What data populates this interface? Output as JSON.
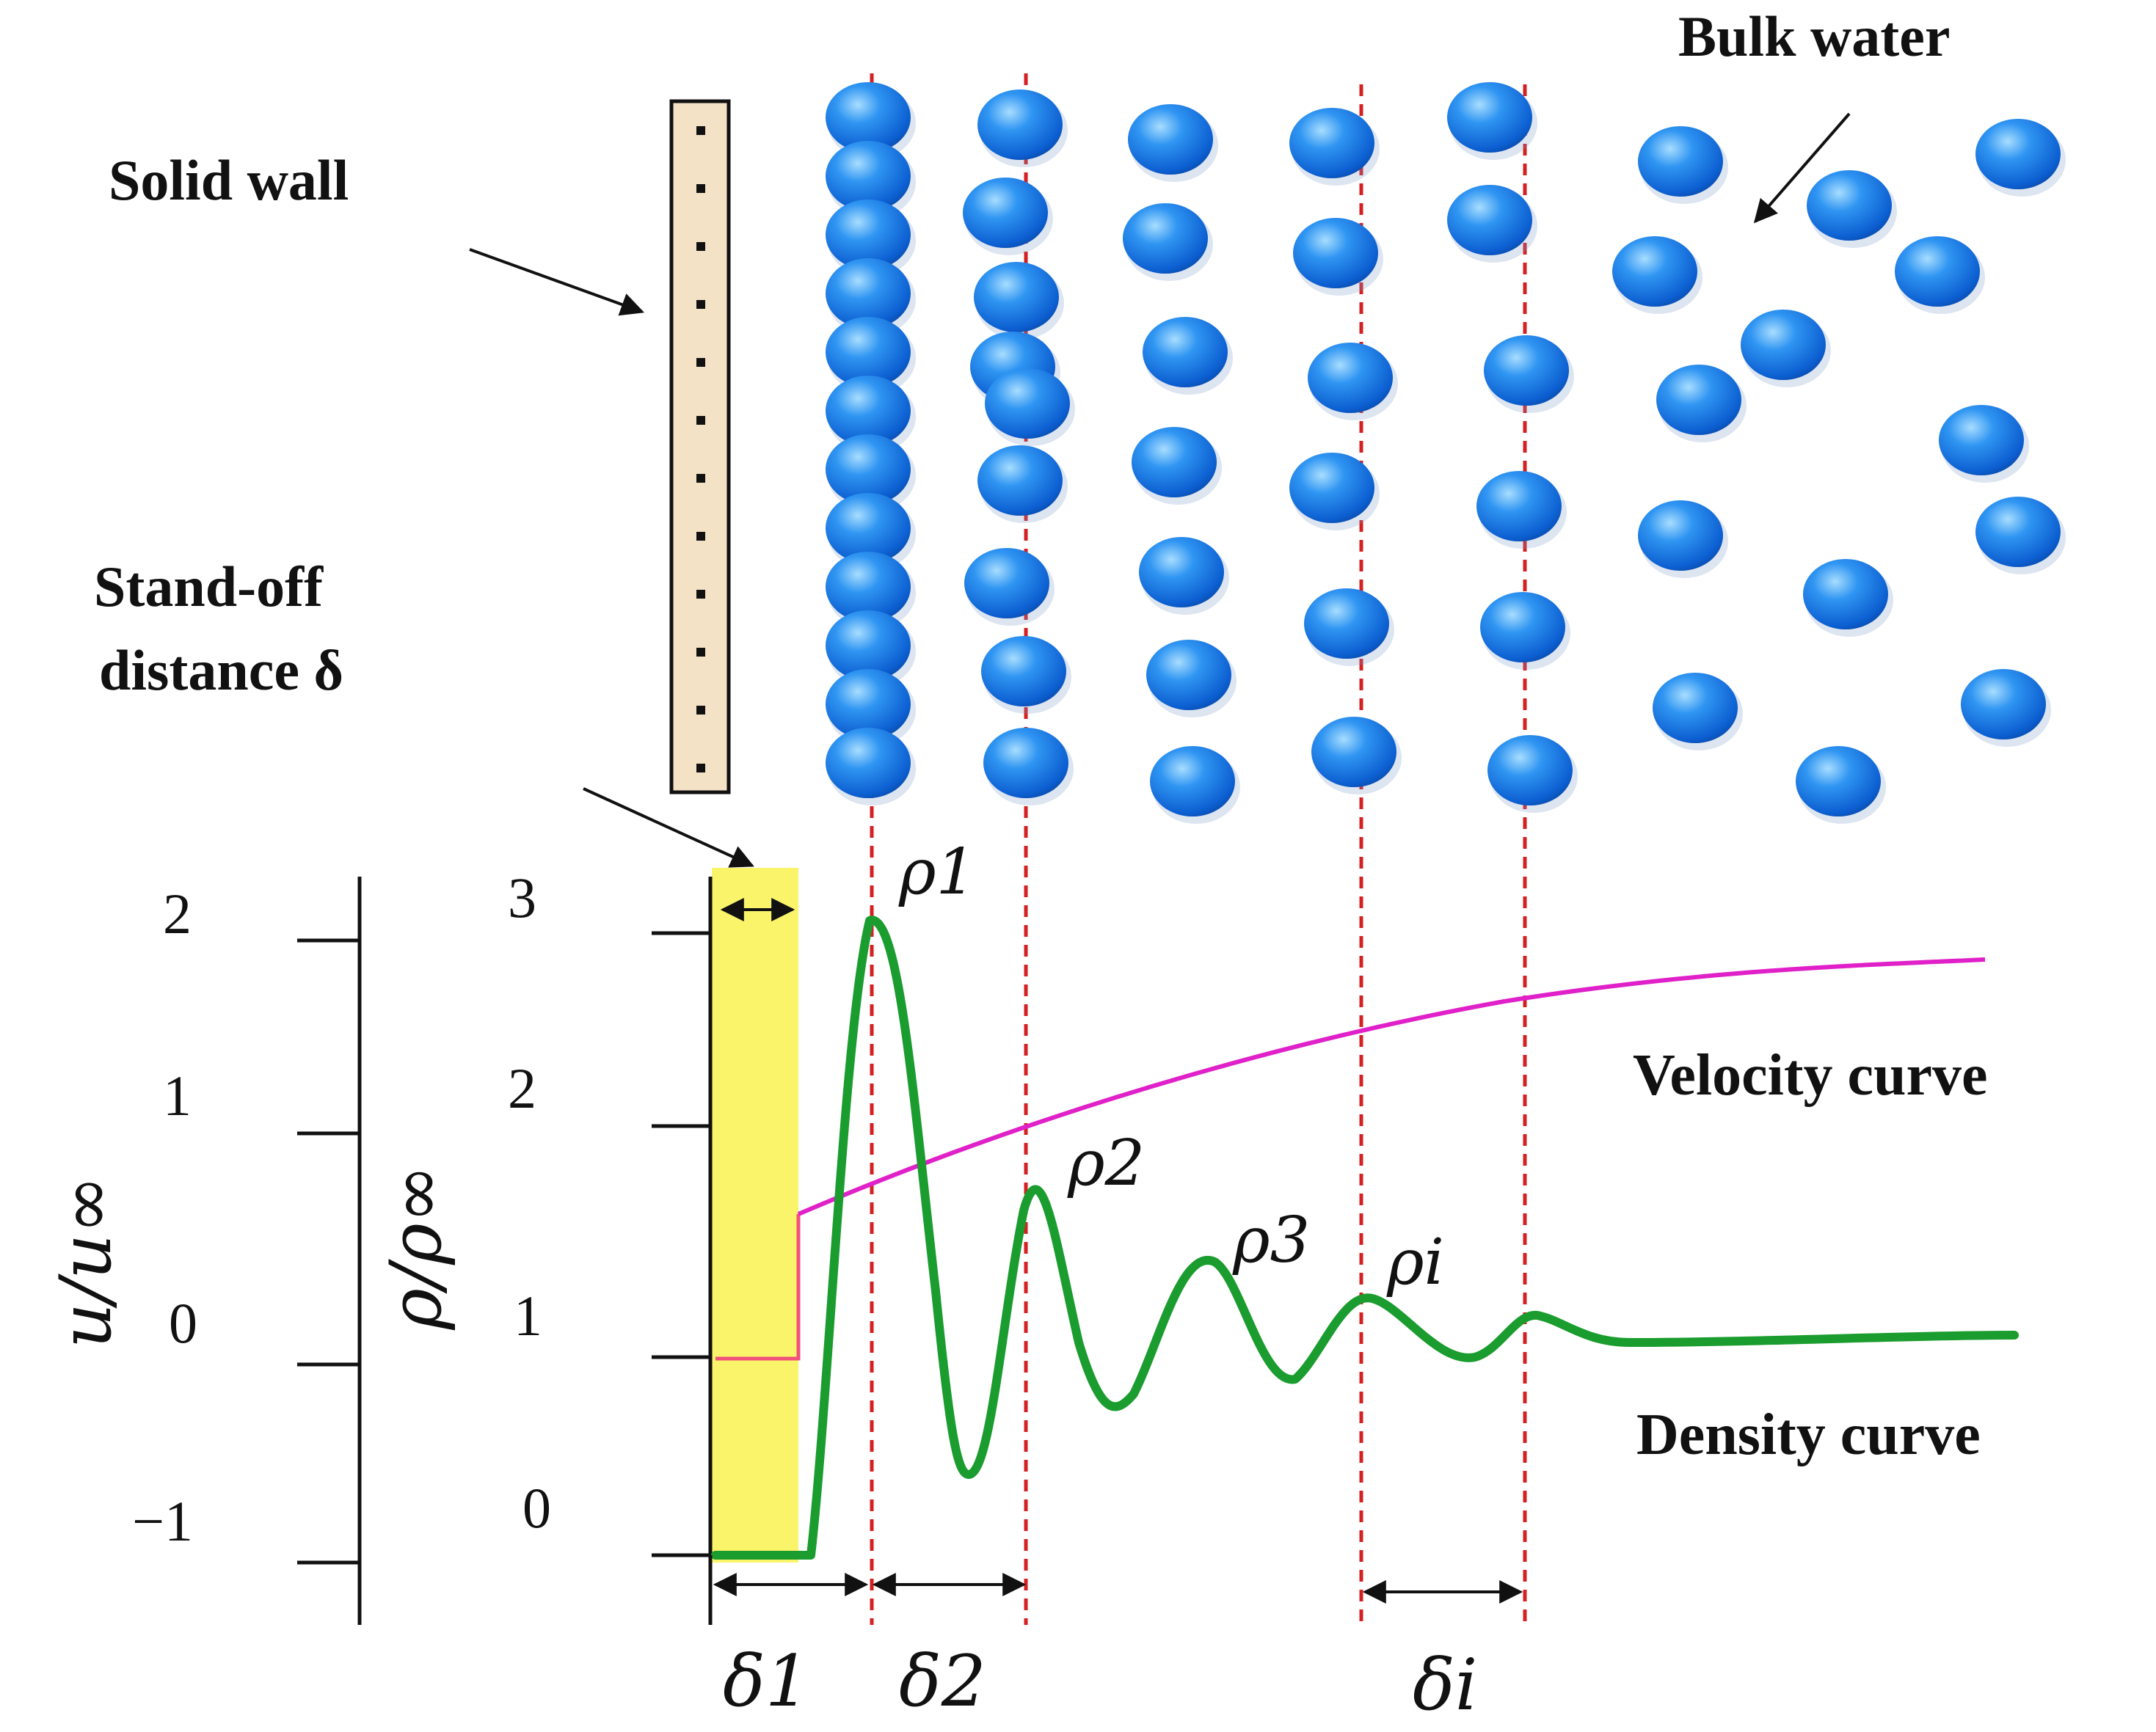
{
  "labels": {
    "solid_wall": "Solid wall",
    "bulk_water": "Bulk water",
    "standoff_line1": "Stand-off",
    "standoff_line2": "distance δ",
    "velocity_curve": "Velocity curve",
    "density_curve": "Density curve"
  },
  "axes": {
    "velocity_axis_label": "u/u∞",
    "velocity_ticks": [
      "2",
      "1",
      "0",
      "−1"
    ],
    "density_axis_label": "ρ/ρ∞",
    "density_ticks": [
      "3",
      "2",
      "1",
      "0"
    ]
  },
  "peak_labels": {
    "rho1": "ρ1",
    "rho2": "ρ2",
    "rho3": "ρ3",
    "rhoi": "ρi"
  },
  "spacing_labels": {
    "delta1": "δ1",
    "delta2": "δ2",
    "deltai": "δi"
  },
  "colors": {
    "molecule": "#1e7be8",
    "density_curve": "#1a9c2e",
    "velocity_curve": "#e020c8",
    "standoff_region": "#faf46a",
    "guide_lines": "#d42020",
    "wall_fill": "#f3e2c6"
  }
}
